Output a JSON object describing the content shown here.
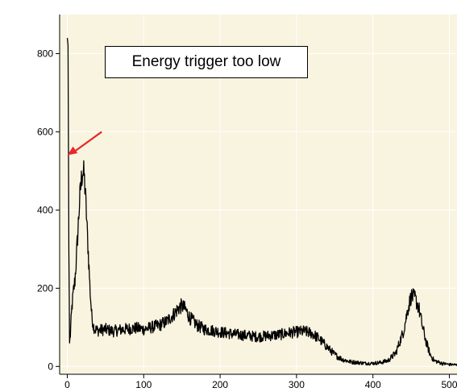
{
  "chart_data": {
    "type": "line",
    "title": "",
    "xlabel": "",
    "ylabel": "",
    "xlim": [
      -10,
      510
    ],
    "ylim": [
      -20,
      900
    ],
    "grid": true,
    "x_ticks": [
      0,
      100,
      200,
      300,
      400,
      500
    ],
    "y_ticks": [
      0,
      200,
      400,
      600,
      800
    ],
    "x_tick_labels": [
      "0",
      "100",
      "200",
      "300",
      "400",
      "500"
    ],
    "y_tick_labels": [
      "0",
      "200",
      "400",
      "600",
      "800"
    ],
    "background": "#f8f4df",
    "series": [
      {
        "color": "#000000",
        "points": [
          [
            0,
            840
          ],
          [
            1,
            820
          ],
          [
            2,
            300
          ],
          [
            3,
            60
          ],
          [
            4,
            80
          ],
          [
            6,
            150
          ],
          [
            8,
            190
          ],
          [
            10,
            220
          ],
          [
            12,
            280
          ],
          [
            14,
            350
          ],
          [
            16,
            420
          ],
          [
            18,
            470
          ],
          [
            20,
            500
          ],
          [
            22,
            490
          ],
          [
            24,
            430
          ],
          [
            26,
            350
          ],
          [
            28,
            270
          ],
          [
            30,
            190
          ],
          [
            32,
            130
          ],
          [
            34,
            105
          ],
          [
            36,
            95
          ],
          [
            40,
            92
          ],
          [
            50,
            95
          ],
          [
            60,
            90
          ],
          [
            70,
            94
          ],
          [
            80,
            96
          ],
          [
            90,
            98
          ],
          [
            100,
            95
          ],
          [
            110,
            100
          ],
          [
            120,
            105
          ],
          [
            130,
            115
          ],
          [
            140,
            135
          ],
          [
            145,
            148
          ],
          [
            150,
            155
          ],
          [
            155,
            145
          ],
          [
            160,
            125
          ],
          [
            170,
            105
          ],
          [
            180,
            95
          ],
          [
            190,
            92
          ],
          [
            200,
            88
          ],
          [
            210,
            85
          ],
          [
            220,
            82
          ],
          [
            230,
            80
          ],
          [
            240,
            78
          ],
          [
            250,
            76
          ],
          [
            260,
            78
          ],
          [
            270,
            80
          ],
          [
            280,
            82
          ],
          [
            290,
            86
          ],
          [
            300,
            88
          ],
          [
            310,
            90
          ],
          [
            320,
            85
          ],
          [
            330,
            70
          ],
          [
            340,
            50
          ],
          [
            350,
            30
          ],
          [
            360,
            18
          ],
          [
            370,
            12
          ],
          [
            380,
            10
          ],
          [
            390,
            8
          ],
          [
            400,
            8
          ],
          [
            410,
            10
          ],
          [
            420,
            15
          ],
          [
            430,
            35
          ],
          [
            440,
            90
          ],
          [
            445,
            140
          ],
          [
            450,
            180
          ],
          [
            455,
            175
          ],
          [
            460,
            150
          ],
          [
            465,
            100
          ],
          [
            470,
            60
          ],
          [
            475,
            30
          ],
          [
            480,
            15
          ],
          [
            490,
            8
          ],
          [
            500,
            5
          ],
          [
            510,
            4
          ]
        ]
      }
    ],
    "annotations": [
      {
        "text": "Energy trigger too low"
      },
      {
        "type": "arrow",
        "color": "#e82828",
        "from": [
          45,
          600
        ],
        "to": [
          0,
          540
        ]
      }
    ]
  }
}
